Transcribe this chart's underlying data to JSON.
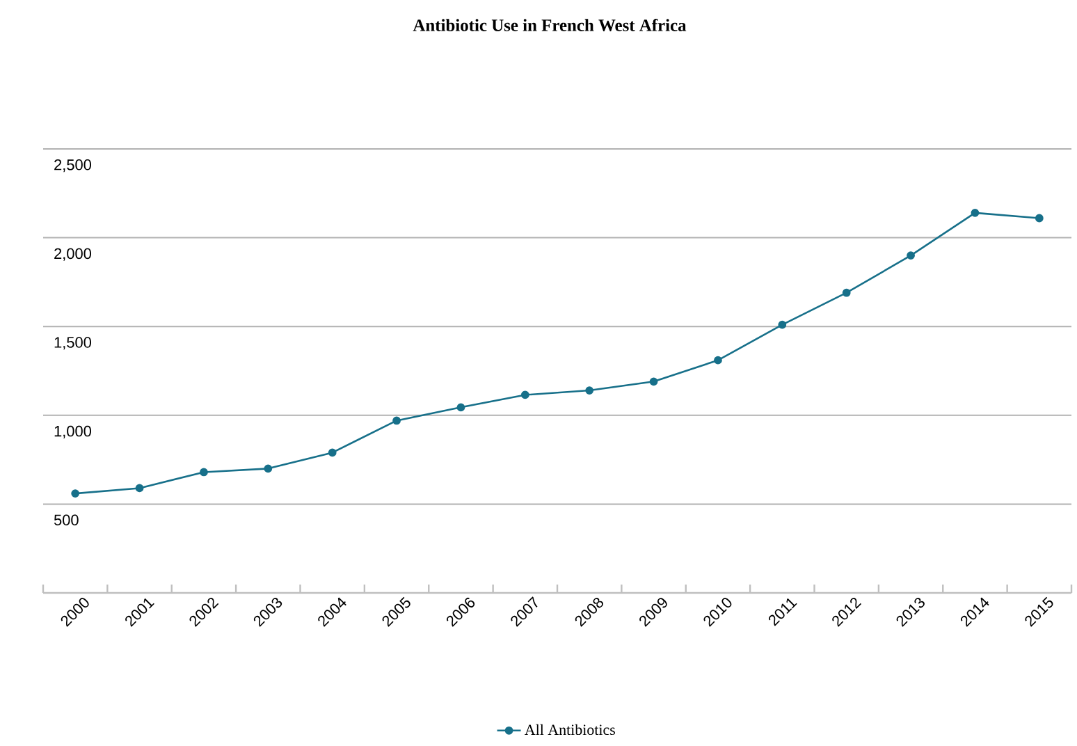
{
  "chart_data": {
    "type": "line",
    "title": "Antibiotic Use in French West Africa",
    "categories": [
      "2000",
      "2001",
      "2002",
      "2003",
      "2004",
      "2005",
      "2006",
      "2007",
      "2008",
      "2009",
      "2010",
      "2011",
      "2012",
      "2013",
      "2014",
      "2015"
    ],
    "series": [
      {
        "name": "All Antibiotics",
        "color": "#17708a",
        "values": [
          560,
          590,
          680,
          700,
          790,
          970,
          1045,
          1115,
          1140,
          1190,
          1310,
          1510,
          1690,
          1900,
          2140,
          2110
        ]
      }
    ],
    "ylim": [
      0,
      2500
    ],
    "yticks": [
      500,
      {
        "value": 1000,
        "label": "1,000"
      },
      {
        "value": 1500,
        "label": "1,500"
      },
      {
        "value": 2000,
        "label": "2,000"
      },
      {
        "value": 2500,
        "label": "2,500"
      }
    ],
    "grid": "y",
    "legend": "bottom",
    "marker": "circle",
    "line_style": "solid"
  }
}
